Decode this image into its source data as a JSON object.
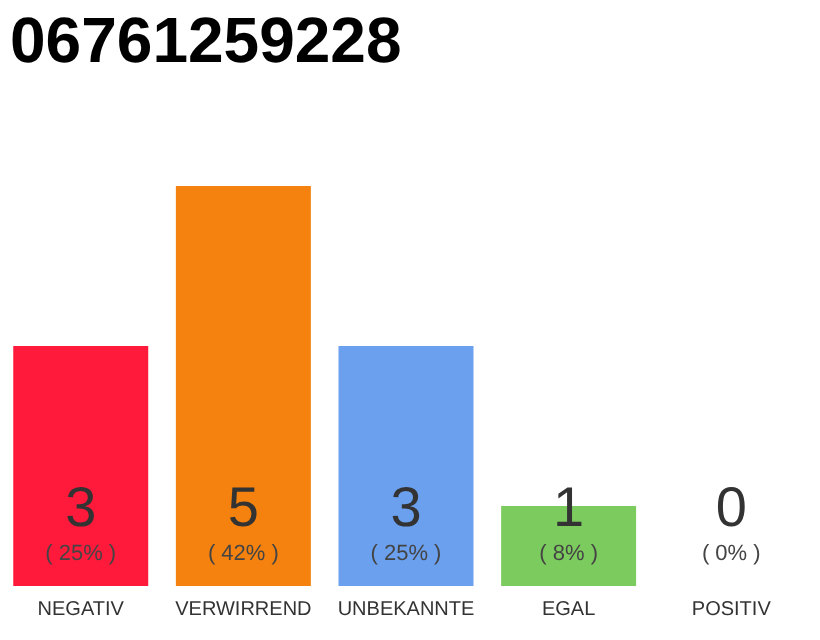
{
  "chart_data": {
    "type": "bar",
    "title": "06761259228",
    "categories": [
      "NEGATIV",
      "VERWIRREND",
      "UNBEKANNTE",
      "EGAL",
      "POSITIV"
    ],
    "values": [
      3,
      5,
      3,
      1,
      0
    ],
    "colors": [
      "#ff1a3c",
      "#f5820f",
      "#6aa0ee",
      "#7ccb5e",
      "#dddddd"
    ],
    "value_labels": [
      "3",
      "5",
      "3",
      "1",
      "0"
    ],
    "annotations": [
      "( 25% )",
      "( 42% )",
      "( 25% )",
      "( 8% )",
      "( 0% )"
    ]
  }
}
